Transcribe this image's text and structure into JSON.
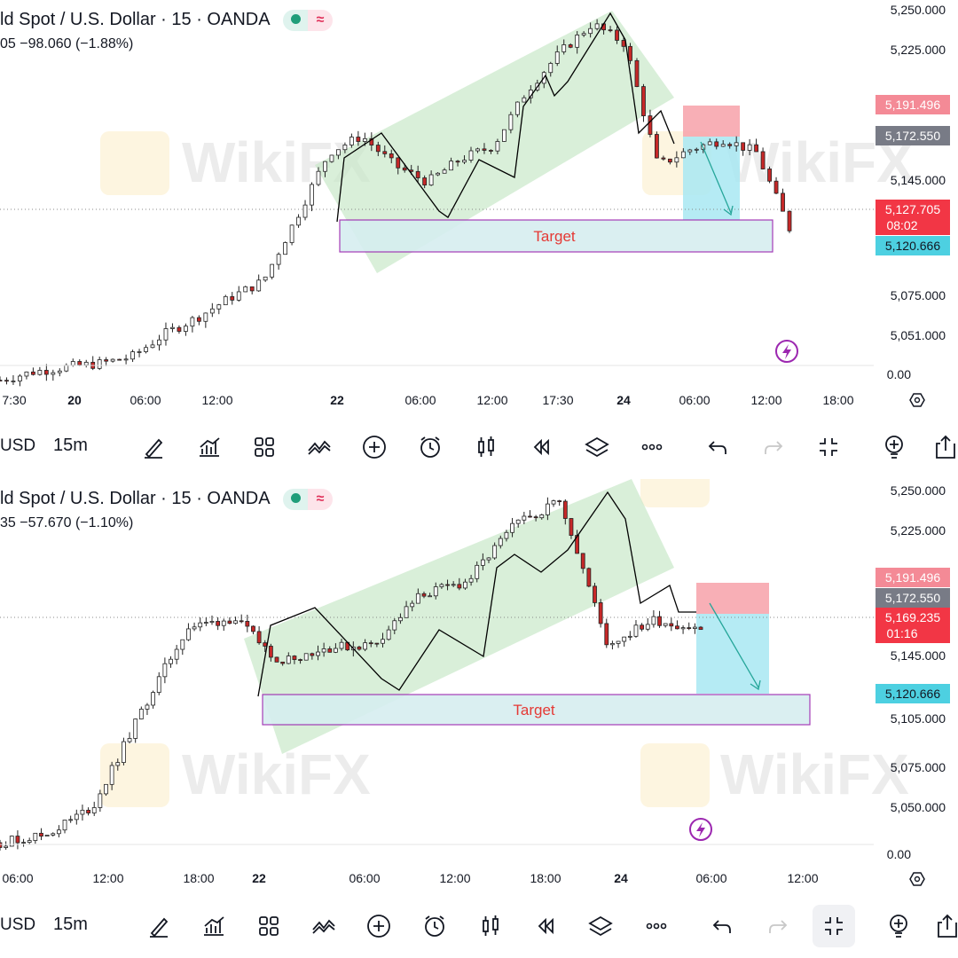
{
  "colors": {
    "channel": "#c9e8c9",
    "target_fill": "#d6eef0",
    "target_border": "#9c27b0",
    "target_text": "#e53935",
    "stop_zone": "#f7a1a9",
    "profit_zone": "#a8e8f2",
    "price_red": "#f23645",
    "price_gray": "#787b86",
    "price_pink": "#f48a96",
    "price_cyan": "#4dd0e1",
    "trend_arrow": "#26a69a",
    "lightning": "#9c27b0"
  },
  "watermark": "WikiFX",
  "panels": [
    {
      "title": "ld Spot / U.S. Dollar · 15 · OANDA",
      "change": "05  −98.060 (−1.88%)",
      "target_label": "Target",
      "y_axis": [
        "5,250.000",
        "5,225.000",
        "5,145.000",
        "5,075.000",
        "5,051.000",
        "0.00"
      ],
      "x_axis": [
        "7:30",
        "20",
        "06:00",
        "12:00",
        "22",
        "06:00",
        "12:00",
        "17:30",
        "24",
        "06:00",
        "12:00",
        "18:00"
      ],
      "price_tags": [
        {
          "value": "5,191.496",
          "color": "pink"
        },
        {
          "value": "5,172.550",
          "color": "gray"
        },
        {
          "value": "5,127.705",
          "sub": "08:02",
          "color": "red"
        },
        {
          "value": "5,120.666",
          "color": "cyan"
        }
      ],
      "toolbar": {
        "symbol": "USD",
        "interval": "15m"
      },
      "chart_data": {
        "type": "line",
        "title": "ld Spot / U.S. Dollar · 15 · OANDA",
        "ylim": [
          5040,
          5255
        ],
        "x": [
          "19 17:30",
          "20 00:00",
          "20 06:00",
          "20 12:00",
          "20 18:00",
          "21 00:00",
          "21 06:00",
          "21 12:00",
          "21 18:00",
          "22 00:00",
          "22 03:00",
          "22 06:00",
          "22 09:00",
          "22 12:00",
          "22 15:00",
          "22 17:30",
          "22 20:00",
          "23 00:00",
          "23 02:00",
          "24 00:00",
          "24 03:00",
          "24 06:00",
          "24 09:00",
          "24 12:00",
          "24 14:00"
        ],
        "series": [
          {
            "values": [
              5030,
              5035,
              5038,
              5040,
              5044,
              5058,
              5068,
              5080,
              5090,
              5128,
              5168,
              5178,
              5160,
              5150,
              5164,
              5172,
              5205,
              5228,
              5246,
              5234,
              5160,
              5170,
              5176,
              5168,
              5122
            ]
          }
        ],
        "zones": {
          "stop": [
            5172.55,
            5191.496
          ],
          "target": [
            5110,
            5125
          ],
          "last": 5127.705
        }
      }
    },
    {
      "title": "ld Spot / U.S. Dollar · 15 · OANDA",
      "change": "35  −57.670 (−1.10%)",
      "target_label": "Target",
      "y_axis": [
        "5,250.000",
        "5,225.000",
        "5,145.000",
        "5,105.000",
        "5,075.000",
        "5,050.000",
        "0.00"
      ],
      "x_axis": [
        "06:00",
        "12:00",
        "18:00",
        "22",
        "06:00",
        "12:00",
        "18:00",
        "24",
        "06:00",
        "12:00"
      ],
      "price_tags": [
        {
          "value": "5,191.496",
          "color": "pink"
        },
        {
          "value": "5,172.550",
          "color": "gray"
        },
        {
          "value": "5,169.235",
          "sub": "01:16",
          "color": "red"
        },
        {
          "value": "5,120.666",
          "color": "cyan"
        }
      ],
      "toolbar": {
        "symbol": "USD",
        "interval": "15m"
      },
      "chart_data": {
        "type": "line",
        "title": "ld Spot / U.S. Dollar · 15 · OANDA",
        "ylim": [
          5040,
          5255
        ],
        "x": [
          "21 06:00",
          "21 12:00",
          "21 18:00",
          "22 00:00",
          "22 03:00",
          "22 06:00",
          "22 09:00",
          "22 12:00",
          "22 15:00",
          "22 18:00",
          "22 21:00",
          "23 00:00",
          "23 02:00",
          "24 00:00",
          "24 03:00",
          "24 05:00"
        ],
        "series": [
          {
            "values": [
              5040,
              5045,
              5062,
              5118,
              5170,
              5176,
              5150,
              5158,
              5160,
              5190,
              5198,
              5232,
              5248,
              5160,
              5175,
              5169
            ]
          }
        ],
        "zones": {
          "stop": [
            5172.55,
            5191.496
          ],
          "target": [
            5105,
            5120
          ],
          "last": 5169.235
        }
      }
    }
  ]
}
